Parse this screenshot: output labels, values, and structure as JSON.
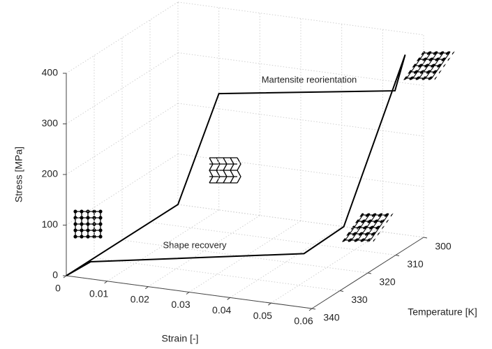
{
  "chart_data": {
    "type": "line3d",
    "xlabel": "Strain [-]",
    "ylabel": "Temperature [K]",
    "zlabel": "Stress [MPa]",
    "xlim": [
      0,
      0.06
    ],
    "xticks": [
      0,
      0.01,
      0.02,
      0.03,
      0.04,
      0.05,
      0.06
    ],
    "ylim": [
      340,
      300
    ],
    "yticks": [
      300,
      310,
      320,
      330,
      340
    ],
    "zlim": [
      0,
      400
    ],
    "zticks": [
      0,
      100,
      200,
      300,
      400
    ],
    "grid": true,
    "series": [
      {
        "color": "#000000",
        "x": [
          0,
          0,
          0.01,
          0.053,
          0.0555,
          0.0405,
          0.041,
          0.0005,
          0
        ],
        "y": [
          340,
          300,
          300,
          300,
          300,
          300,
          315,
          332,
          340
        ],
        "z": [
          0,
          0,
          230,
          282,
          356,
          0,
          0,
          0,
          0
        ]
      }
    ],
    "annotations": [
      "Martensite reorientation",
      "Shape recovery"
    ]
  }
}
